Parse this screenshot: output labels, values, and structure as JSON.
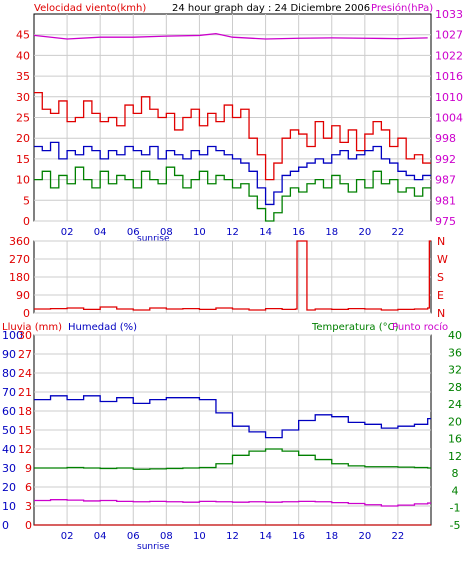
{
  "header": {
    "left_title": "Velocidad viento(kmh)",
    "center_title": "24 hour graph day : 24 Diciembre 2006",
    "right_title": "Presión(hPa)"
  },
  "colors": {
    "red": "#e00000",
    "blue": "#0000c0",
    "green": "#008000",
    "magenta": "#cc00cc",
    "darkred": "#c00000",
    "grid": "#cccccc",
    "frame": "#000000"
  },
  "time_ticks": [
    "02",
    "04",
    "06",
    "08",
    "10",
    "12",
    "14",
    "16",
    "18",
    "20",
    "22"
  ],
  "sunrise_label": "sunrise",
  "panel3_titles": {
    "lluvia": "Lluvia (mm)",
    "humedad": "Humedad (%)",
    "temp": "Temperatura (°C)",
    "dew": "Punto rocío"
  },
  "chart_data": [
    {
      "type": "line",
      "name": "wind_pressure",
      "y_left_ticks": [
        "0",
        "5",
        "10",
        "15",
        "20",
        "25",
        "30",
        "35",
        "40",
        "45"
      ],
      "y_right_ticks": [
        "975",
        "981",
        "987",
        "992",
        "998",
        "1004",
        "1010",
        "1016",
        "1022",
        "1027",
        "1033"
      ],
      "ylim_left": [
        0,
        50
      ],
      "ylim_right": [
        975,
        1033
      ],
      "xlim": [
        0,
        24
      ],
      "series": [
        {
          "name": "Velocidad viento(kmh)",
          "color_key": "red",
          "x": [
            0,
            0.5,
            1,
            1.5,
            2,
            2.5,
            3,
            3.5,
            4,
            4.5,
            5,
            5.5,
            6,
            6.5,
            7,
            7.5,
            8,
            8.5,
            9,
            9.5,
            10,
            10.5,
            11,
            11.5,
            12,
            12.5,
            13,
            13.5,
            14,
            14.5,
            15,
            15.5,
            16,
            16.5,
            17,
            17.5,
            18,
            18.5,
            19,
            19.5,
            20,
            20.5,
            21,
            21.5,
            22,
            22.5,
            23,
            23.5
          ],
          "values": [
            31,
            27,
            26,
            29,
            24,
            25,
            29,
            26,
            24,
            25,
            23,
            28,
            26,
            30,
            27,
            25,
            26,
            22,
            25,
            27,
            23,
            26,
            24,
            28,
            25,
            27,
            20,
            16,
            10,
            14,
            20,
            22,
            21,
            18,
            24,
            20,
            23,
            19,
            22,
            17,
            21,
            24,
            22,
            18,
            20,
            15,
            16,
            14
          ]
        },
        {
          "name": "gust_blue",
          "color_key": "blue",
          "x": [
            0,
            0.5,
            1,
            1.5,
            2,
            2.5,
            3,
            3.5,
            4,
            4.5,
            5,
            5.5,
            6,
            6.5,
            7,
            7.5,
            8,
            8.5,
            9,
            9.5,
            10,
            10.5,
            11,
            11.5,
            12,
            12.5,
            13,
            13.5,
            14,
            14.5,
            15,
            15.5,
            16,
            16.5,
            17,
            17.5,
            18,
            18.5,
            19,
            19.5,
            20,
            20.5,
            21,
            21.5,
            22,
            22.5,
            23,
            23.5
          ],
          "values": [
            18,
            17,
            19,
            15,
            17,
            16,
            18,
            17,
            15,
            17,
            16,
            18,
            17,
            16,
            18,
            15,
            17,
            16,
            15,
            17,
            16,
            18,
            17,
            16,
            15,
            14,
            12,
            8,
            4,
            7,
            11,
            12,
            13,
            14,
            15,
            14,
            16,
            17,
            15,
            16,
            17,
            18,
            15,
            14,
            12,
            11,
            10,
            11
          ]
        },
        {
          "name": "wind_green",
          "color_key": "green",
          "x": [
            0,
            0.5,
            1,
            1.5,
            2,
            2.5,
            3,
            3.5,
            4,
            4.5,
            5,
            5.5,
            6,
            6.5,
            7,
            7.5,
            8,
            8.5,
            9,
            9.5,
            10,
            10.5,
            11,
            11.5,
            12,
            12.5,
            13,
            13.5,
            14,
            14.5,
            15,
            15.5,
            16,
            16.5,
            17,
            17.5,
            18,
            18.5,
            19,
            19.5,
            20,
            20.5,
            21,
            21.5,
            22,
            22.5,
            23,
            23.5
          ],
          "values": [
            10,
            12,
            8,
            11,
            9,
            13,
            10,
            8,
            12,
            9,
            11,
            10,
            8,
            12,
            10,
            9,
            13,
            11,
            8,
            10,
            12,
            9,
            11,
            10,
            8,
            9,
            6,
            3,
            0,
            2,
            6,
            8,
            7,
            9,
            10,
            8,
            11,
            9,
            7,
            10,
            8,
            12,
            9,
            10,
            7,
            8,
            6,
            8
          ]
        },
        {
          "name": "Presión(hPa)",
          "color_key": "magenta",
          "x": [
            0,
            2,
            4,
            6,
            8,
            10,
            11,
            12,
            14,
            16,
            18,
            20,
            22,
            23.8
          ],
          "values": [
            1027,
            1026,
            1026.5,
            1026.5,
            1026.8,
            1027,
            1027.5,
            1026.5,
            1026,
            1026.2,
            1026.3,
            1026.2,
            1026.1,
            1026.3
          ]
        }
      ]
    },
    {
      "type": "line",
      "name": "wind_direction",
      "y_left_ticks": [
        "0",
        "90",
        "180",
        "270",
        "360"
      ],
      "y_right_ticks": [
        "N",
        "E",
        "S",
        "W",
        "N"
      ],
      "ylim": [
        0,
        360
      ],
      "xlim": [
        0,
        24
      ],
      "series": [
        {
          "name": "direction",
          "color_key": "red",
          "x": [
            0,
            1,
            2,
            3,
            4,
            5,
            6,
            7,
            8,
            9,
            10,
            11,
            12,
            13,
            14,
            15,
            15.8,
            15.9,
            16.1,
            16.3,
            16.5,
            17,
            18,
            19,
            20,
            21,
            22,
            23,
            23.8,
            23.9
          ],
          "values": [
            20,
            22,
            25,
            18,
            30,
            20,
            15,
            25,
            20,
            22,
            18,
            25,
            20,
            15,
            22,
            18,
            20,
            360,
            360,
            360,
            15,
            20,
            18,
            22,
            20,
            15,
            18,
            20,
            25,
            360
          ]
        }
      ]
    },
    {
      "type": "line",
      "name": "rain_humidity_temp",
      "y_left_outer_ticks": [
        "0",
        "10",
        "20",
        "30",
        "40",
        "50",
        "60",
        "70",
        "80",
        "90",
        "100"
      ],
      "y_left_inner_ticks": [
        "0",
        "3",
        "6",
        "9",
        "12",
        "15",
        "18",
        "21",
        "24",
        "27",
        "30"
      ],
      "y_right_ticks": [
        "-5",
        "-1",
        "4",
        "8",
        "12",
        "16",
        "20",
        "24",
        "28",
        "32",
        "36",
        "40"
      ],
      "ylim_humidity": [
        0,
        100
      ],
      "ylim_temp": [
        -5,
        40
      ],
      "xlim": [
        0,
        24
      ],
      "series": [
        {
          "name": "Humedad (%)",
          "color_key": "blue",
          "x": [
            0,
            1,
            2,
            3,
            4,
            5,
            6,
            7,
            8,
            9,
            10,
            11,
            12,
            13,
            14,
            15,
            16,
            17,
            18,
            19,
            20,
            21,
            22,
            23,
            23.8
          ],
          "values": [
            66,
            68,
            66,
            68,
            65,
            67,
            64,
            66,
            67,
            67,
            66,
            59,
            52,
            49,
            46,
            50,
            55,
            58,
            57,
            54,
            53,
            51,
            52,
            53,
            56
          ]
        },
        {
          "name": "Temperatura (°C)",
          "color_key": "green",
          "x": [
            0,
            1,
            2,
            3,
            4,
            5,
            6,
            7,
            8,
            9,
            10,
            11,
            12,
            13,
            14,
            15,
            16,
            17,
            18,
            19,
            20,
            21,
            22,
            23,
            23.8
          ],
          "values": [
            8.5,
            8.5,
            8.6,
            8.5,
            8.4,
            8.5,
            8.2,
            8.3,
            8.4,
            8.5,
            8.6,
            9.5,
            11.5,
            12.5,
            13.0,
            12.5,
            11.5,
            10.5,
            9.5,
            9.0,
            8.8,
            8.8,
            8.7,
            8.6,
            8.5
          ]
        },
        {
          "name": "Punto rocío",
          "color_key": "magenta",
          "x": [
            0,
            1,
            2,
            3,
            4,
            5,
            6,
            7,
            8,
            9,
            10,
            11,
            12,
            13,
            14,
            15,
            16,
            17,
            18,
            19,
            20,
            21,
            22,
            23,
            23.8
          ],
          "values": [
            0.8,
            1.0,
            0.9,
            0.7,
            0.8,
            0.6,
            0.5,
            0.6,
            0.5,
            0.4,
            0.6,
            0.5,
            0.4,
            0.5,
            0.4,
            0.5,
            0.6,
            0.5,
            0.3,
            0.1,
            -0.2,
            -0.5,
            -0.3,
            0.0,
            0.2
          ]
        },
        {
          "name": "Lluvia (mm)",
          "color_key": "darkred",
          "x": [
            0,
            23.8
          ],
          "values": [
            0,
            0
          ]
        }
      ]
    }
  ]
}
